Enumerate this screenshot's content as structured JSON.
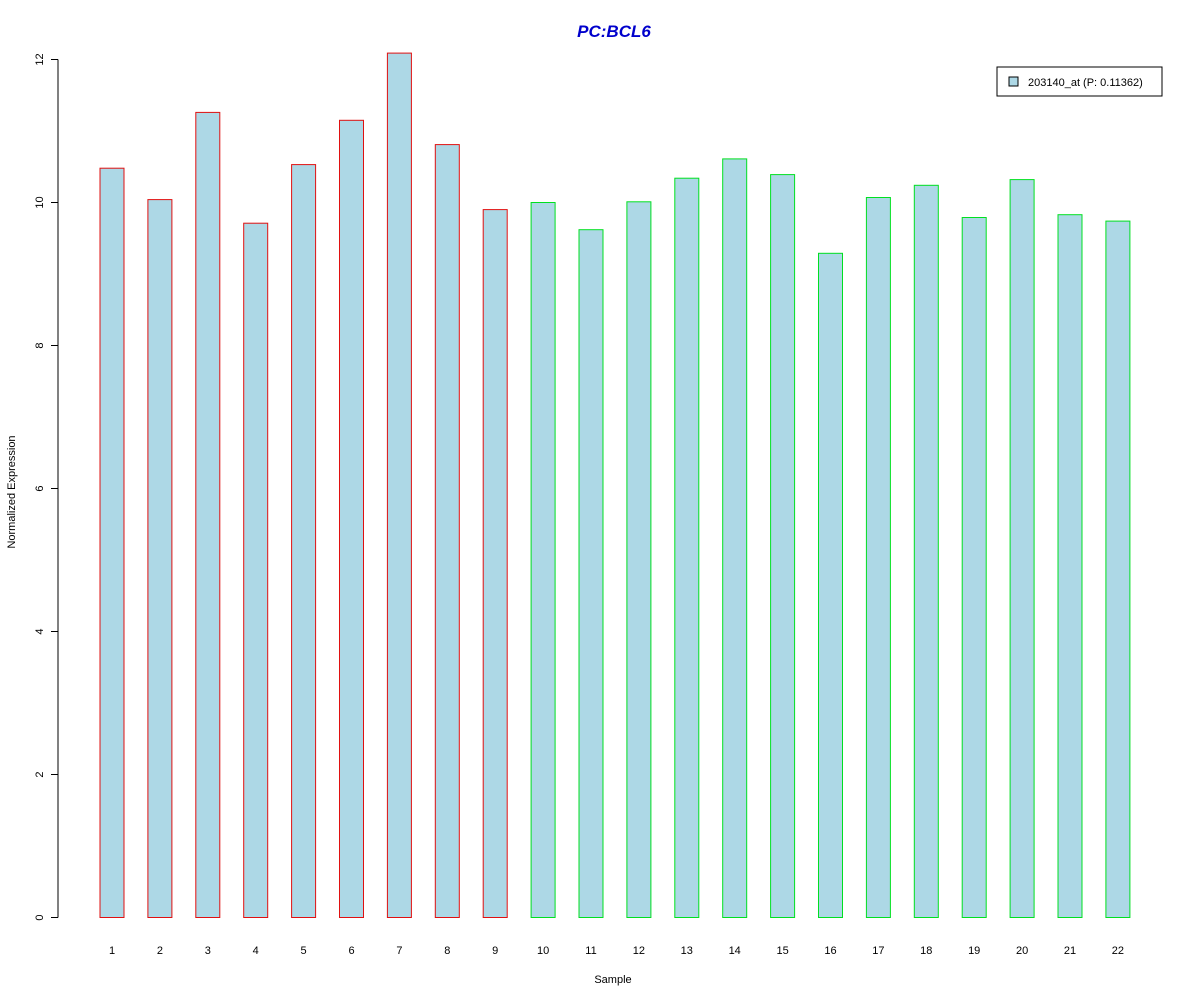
{
  "chart_data": {
    "type": "bar",
    "title": "PC:BCL6",
    "xlabel": "Sample",
    "ylabel": "Normalized Expression",
    "categories": [
      "1",
      "2",
      "3",
      "4",
      "5",
      "6",
      "7",
      "8",
      "9",
      "10",
      "11",
      "12",
      "13",
      "14",
      "15",
      "16",
      "17",
      "18",
      "19",
      "20",
      "21",
      "22"
    ],
    "series": [
      {
        "name": "203140_at (P: 0.11362)",
        "values": [
          10.48,
          10.04,
          11.26,
          9.71,
          10.53,
          11.15,
          12.09,
          10.81,
          9.9,
          10.0,
          9.62,
          10.01,
          10.34,
          10.61,
          10.39,
          9.29,
          10.07,
          10.24,
          9.79,
          10.32,
          9.83,
          9.74
        ]
      }
    ],
    "groups": [
      {
        "samples": [
          1,
          9
        ],
        "border_color": "#e01010"
      },
      {
        "samples": [
          10,
          22
        ],
        "border_color": "#00e020"
      }
    ],
    "ylim": [
      0,
      12
    ],
    "yticks": [
      "0",
      "2",
      "4",
      "6",
      "8",
      "10",
      "12"
    ],
    "legend_position": "top-right",
    "grid": false
  },
  "colors": {
    "bar_fill": "#add8e6",
    "title": "#0000cc",
    "axis": "#000000"
  }
}
